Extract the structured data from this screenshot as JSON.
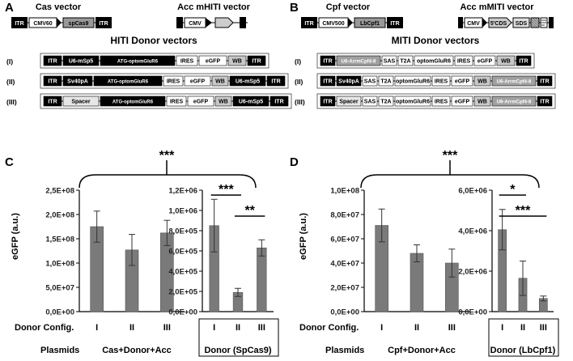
{
  "panel_labels": {
    "A": "A",
    "B": "B",
    "C": "C",
    "D": "D"
  },
  "panelA": {
    "cas_vector_title": "Cas vector",
    "acc_vector_title": "Acc mHITI vector",
    "donor_title": "HITI Donor vectors",
    "cas_vector": {
      "itr": "ITR",
      "promoter": "CMV60",
      "gene": "spCas9"
    },
    "acc_vector": {
      "promoter": "CMV"
    },
    "rows": [
      {
        "label": "(I)",
        "segments": [
          "ITR",
          "U6-mSp5",
          "ATG-optomGluR6",
          "IRES",
          "eGFP",
          "WB",
          "ITR"
        ]
      },
      {
        "label": "(II)",
        "segments": [
          "ITR",
          "Sv40pA",
          "ATG-optomGluR6",
          "IRES",
          "eGFP",
          "WB",
          "U6-mSp5",
          "ITR"
        ]
      },
      {
        "label": "(III)",
        "segments": [
          "ITR",
          "Spacer",
          "ATG-optomGluR6",
          "IRES",
          "eGFP",
          "WB",
          "U6-mSp5",
          "ITR"
        ]
      }
    ]
  },
  "panelB": {
    "cpf_vector_title": "Cpf vector",
    "acc_vector_title": "Acc mMITI vector",
    "donor_title": "MITI Donor vectors",
    "cpf_vector": {
      "itr": "ITR",
      "promoter": "CMV500",
      "gene": "LbCpf1"
    },
    "acc_vector": {
      "promoter": "CMV",
      "cds": "5'CDS",
      "sds": "SDS"
    },
    "rows": [
      {
        "label": "(I)",
        "segments": [
          "ITR",
          "U6-ArrmCpf4-8",
          "SAS",
          "T2A",
          "optomGluR6",
          "IRES",
          "eGFP",
          "WB",
          "ITR"
        ]
      },
      {
        "label": "(II)",
        "segments": [
          "ITR",
          "Sv40pA",
          "SAS",
          "T2A",
          "optomGluR6",
          "IRES",
          "eGFP",
          "WB",
          "U6-ArrmCpf4-8",
          "ITR"
        ]
      },
      {
        "label": "(III)",
        "segments": [
          "ITR",
          "Spacer",
          "SAS",
          "T2A",
          "optomGluR6",
          "IRES",
          "eGFP",
          "WB",
          "U6-ArrmCpf4-8",
          "ITR"
        ]
      }
    ]
  },
  "axis_titles": {
    "C": "eGFP (a.u.)",
    "D": "eGFP (a.u.)"
  },
  "row_titles": {
    "config": "Donor Config.",
    "plasmids": "Plasmids"
  },
  "chart_data": [
    {
      "id": "C-left",
      "type": "bar",
      "panel": "C",
      "categories": [
        "I",
        "II",
        "III"
      ],
      "values": [
        175000000.0,
        127000000.0,
        162000000.0
      ],
      "errors": [
        32000000.0,
        32000000.0,
        26000000.0
      ],
      "ylim": [
        0,
        250000000.0
      ],
      "yticks": [
        "0,0E+00",
        "5,0E+07",
        "1,0E+08",
        "1,5E+08",
        "2,0E+08",
        "2,5E+08"
      ],
      "plasmids": "Cas+Donor+Acc"
    },
    {
      "id": "C-right",
      "type": "bar",
      "panel": "C",
      "categories": [
        "I",
        "II",
        "III"
      ],
      "values": [
        850000.0,
        190000.0,
        630000.0
      ],
      "errors": [
        260000.0,
        40000.0,
        80000.0
      ],
      "ylim": [
        0,
        1200000.0
      ],
      "yticks": [
        "0,0E+00",
        "2,0E+05",
        "4,0E+05",
        "6,0E+05",
        "8,0E+05",
        "1,0E+06",
        "1,2E+06"
      ],
      "plasmids": "Donor (SpCas9)",
      "significance": [
        {
          "from": 0,
          "to": 1,
          "label": "***"
        },
        {
          "from": 1,
          "to": 2,
          "label": "**"
        }
      ]
    },
    {
      "id": "D-left",
      "type": "bar",
      "panel": "D",
      "categories": [
        "I",
        "II",
        "III"
      ],
      "values": [
        71000000.0,
        48000000.0,
        40000000.0
      ],
      "errors": [
        13500000.0,
        7000000.0,
        11500000.0
      ],
      "ylim": [
        0,
        100000000.0
      ],
      "yticks": [
        "0,0E+00",
        "2,0E+07",
        "4,0E+07",
        "6,0E+07",
        "8,0E+07",
        "1,0E+08"
      ],
      "plasmids": "Cpf+Donor+Acc"
    },
    {
      "id": "D-right",
      "type": "bar",
      "panel": "D",
      "categories": [
        "I",
        "II",
        "III"
      ],
      "values": [
        4050000.0,
        1650000.0,
        650000.0
      ],
      "errors": [
        1000000.0,
        850000.0,
        120000.0
      ],
      "ylim": [
        0,
        6000000.0
      ],
      "yticks": [
        "0,0E+00",
        "2,0E+06",
        "4,0E+06",
        "6,0E+06"
      ],
      "plasmids": "Donor (LbCpf1)",
      "significance": [
        {
          "from": 0,
          "to": 1,
          "label": "*"
        },
        {
          "from": 0,
          "to": 2,
          "label": "***"
        }
      ]
    }
  ],
  "top_significance": {
    "C": "***",
    "D": "***"
  },
  "colors": {
    "bar": "#7a7a7a",
    "box_dark": "#000000",
    "box_grey": "#a6a6a6",
    "box_light": "#e8e8e8"
  }
}
